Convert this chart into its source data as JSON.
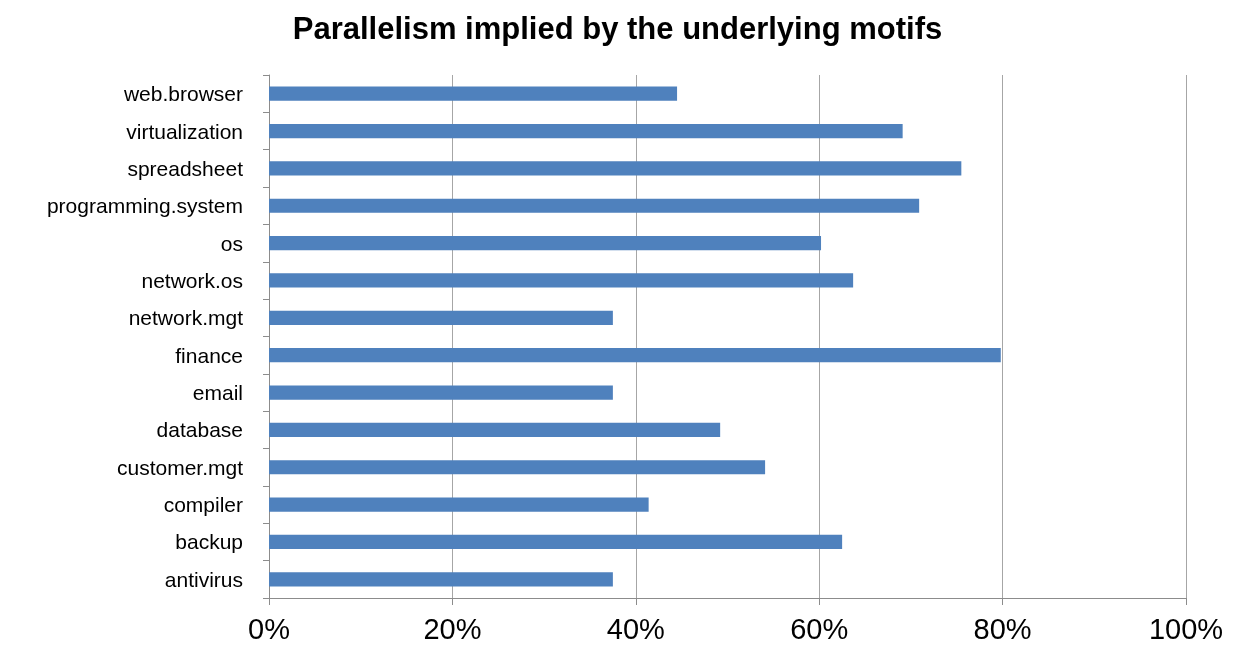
{
  "chart_data": {
    "type": "bar",
    "orientation": "horizontal",
    "title": "Parallelism implied by the underlying motifs",
    "categories": [
      "web.browser",
      "virtualization",
      "spreadsheet",
      "programming.system",
      "os",
      "network.os",
      "network.mgt",
      "finance",
      "email",
      "database",
      "customer.mgt",
      "compiler",
      "backup",
      "antivirus"
    ],
    "values": [
      44.5,
      69.1,
      75.5,
      70.9,
      60.2,
      63.7,
      37.5,
      79.8,
      37.5,
      49.2,
      54.1,
      41.4,
      62.5,
      37.5
    ],
    "color": "#4f81bd",
    "xlim": [
      0,
      100
    ],
    "xticks": [
      {
        "value": 0,
        "label": "0%"
      },
      {
        "value": 20,
        "label": "20%"
      },
      {
        "value": 40,
        "label": "40%"
      },
      {
        "value": 60,
        "label": "60%"
      },
      {
        "value": 80,
        "label": "80%"
      },
      {
        "value": 100,
        "label": "100%"
      }
    ],
    "grid": "x"
  }
}
